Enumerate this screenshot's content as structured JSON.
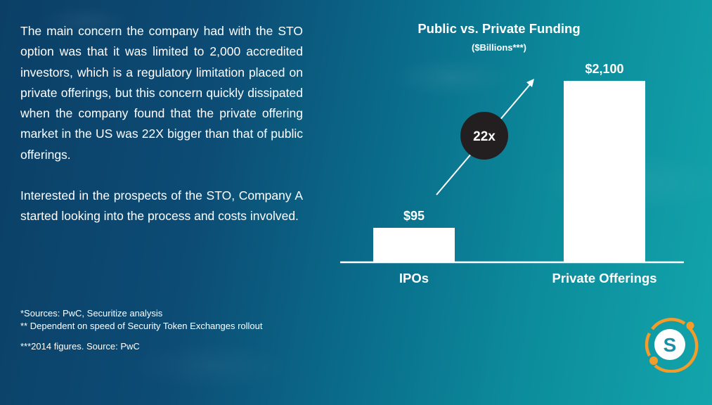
{
  "body": {
    "paragraph_1": "The main concern the company had with the STO option was that it was limited to 2,000 accredited investors, which is a regulatory limitation placed on private offerings, but this concern quickly dissipated when the company found that the private offering market in the US was 22X bigger than that of public offerings.",
    "paragraph_2": "Interested in the prospects of the STO, Company A started looking into the process and costs involved."
  },
  "footnotes": [
    "*Sources: PwC, Securitize analysis",
    "** Dependent on speed of Security Token Exchanges rollout",
    "***2014 figures. Source: PwC"
  ],
  "chart_data": {
    "type": "bar",
    "title": "Public vs. Private Funding",
    "subtitle": "($Billions***)",
    "categories": [
      "IPOs",
      "Private Offerings"
    ],
    "values": [
      95,
      2100
    ],
    "data_labels": [
      "$95",
      "$2,100"
    ],
    "annotation": "22x",
    "xlabel": "",
    "ylabel": "",
    "grid": false,
    "legend": "none"
  },
  "colors": {
    "bar": "#ffffff",
    "badge": "#231f20",
    "logo_ring": "#f39c2a",
    "logo_letter": "#1a8fa6"
  },
  "logo": {
    "letter": "S",
    "icon": "securitize-logo-icon"
  }
}
